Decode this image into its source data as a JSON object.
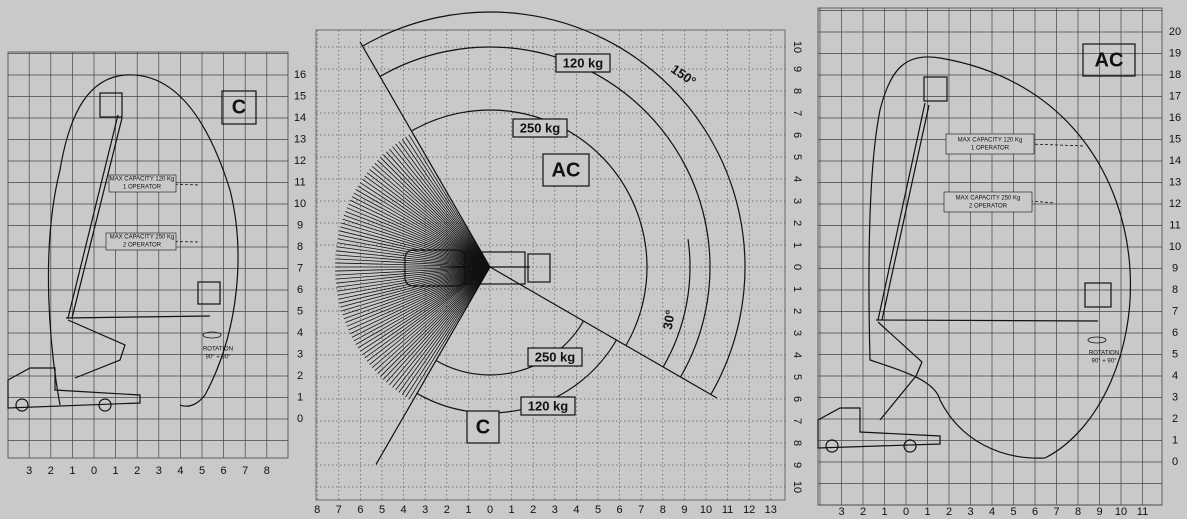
{
  "left_panel": {
    "badge": "C",
    "capacity_120": {
      "line1": "MAX  CAPACITY 120 Kg",
      "line2": "1 OPERATOR"
    },
    "capacity_250": {
      "line1": "MAX  CAPACITY 250 Kg",
      "line2": "2 OPERATOR"
    },
    "rotation": {
      "line1": "ROTATION",
      "line2": "90° + 90°"
    },
    "x_labels": [
      "3",
      "2",
      "1",
      "0",
      "1",
      "2",
      "3",
      "4",
      "5",
      "6",
      "7",
      "8"
    ],
    "y_labels": [
      "0",
      "1",
      "2",
      "3",
      "4",
      "5",
      "6",
      "7",
      "8",
      "9",
      "10",
      "11",
      "12",
      "13",
      "14",
      "15",
      "16"
    ]
  },
  "middle_panel": {
    "labels": {
      "ac_120": "120 kg",
      "angle_150": "150°",
      "ac_250": "250 kg",
      "ac_badge": "AC",
      "c_250": "250 kg",
      "c_120": "120 kg",
      "c_badge": "C",
      "angle_30": "30°"
    },
    "x_labels": [
      "8",
      "7",
      "6",
      "5",
      "4",
      "3",
      "2",
      "1",
      "0",
      "1",
      "2",
      "3",
      "4",
      "5",
      "6",
      "7",
      "8",
      "9",
      "10",
      "11",
      "12",
      "13"
    ],
    "y_labels": [
      "10",
      "9",
      "8",
      "7",
      "6",
      "5",
      "4",
      "3",
      "2",
      "1",
      "0",
      "1",
      "2",
      "3",
      "4",
      "5",
      "6",
      "7",
      "8",
      "9",
      "10"
    ]
  },
  "right_panel": {
    "badge": "AC",
    "capacity_120": {
      "line1": "MAX  CAPACITY 120 Kg",
      "line2": "1 OPERATOR"
    },
    "capacity_250": {
      "line1": "MAX  CAPACITY 250 Kg",
      "line2": "2 OPERATOR"
    },
    "rotation": {
      "line1": "ROTATION",
      "line2": "90° + 90°"
    },
    "x_labels": [
      "3",
      "2",
      "1",
      "0",
      "1",
      "2",
      "3",
      "4",
      "5",
      "6",
      "7",
      "8",
      "9",
      "10",
      "11"
    ],
    "y_labels": [
      "0",
      "1",
      "2",
      "3",
      "4",
      "5",
      "6",
      "7",
      "8",
      "9",
      "10",
      "11",
      "12",
      "13",
      "14",
      "15",
      "16",
      "17",
      "18",
      "19",
      "20"
    ]
  }
}
